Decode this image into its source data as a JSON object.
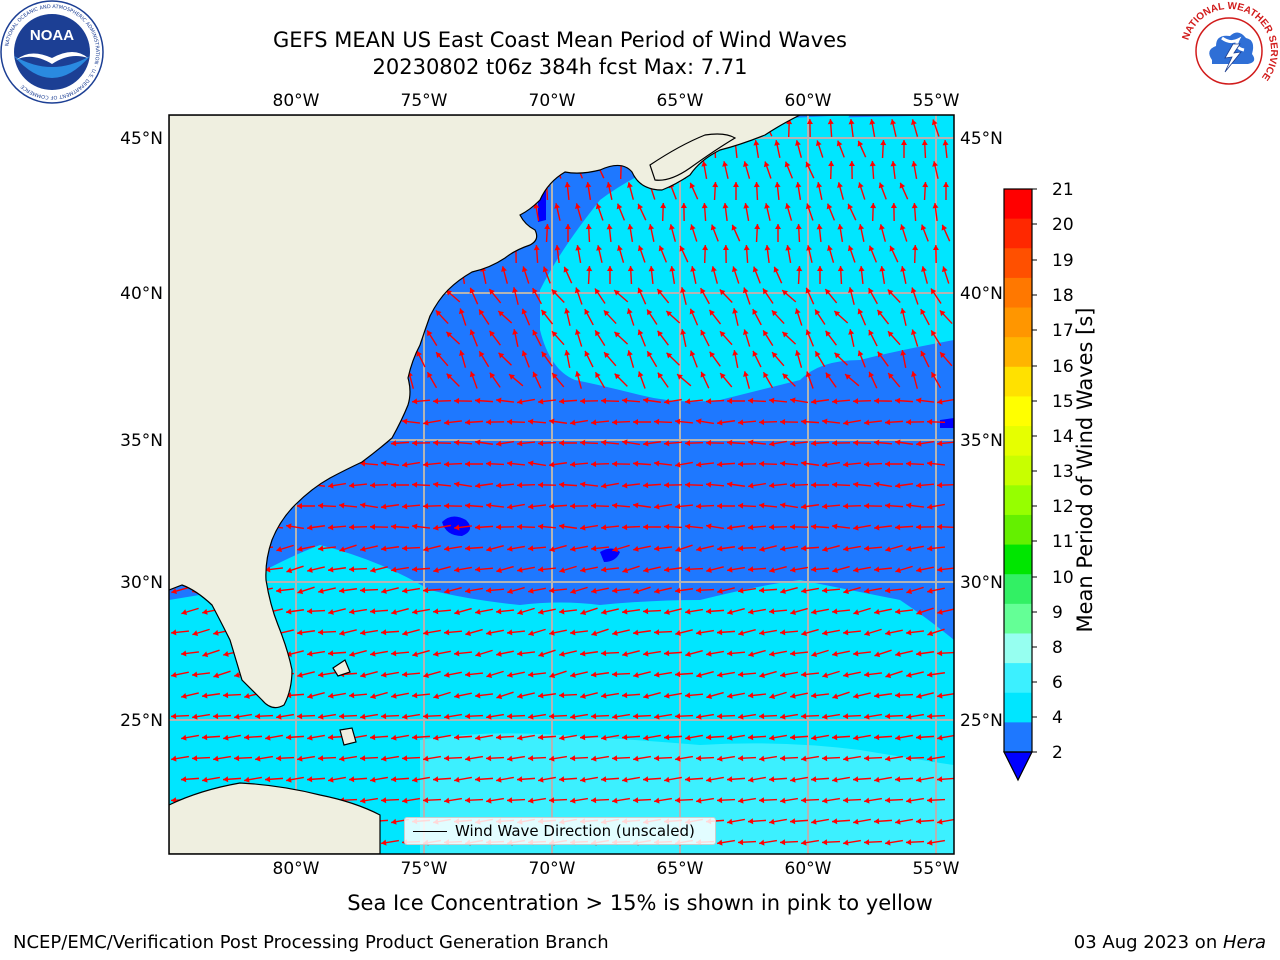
{
  "title": {
    "line1": "GEFS MEAN US East Coast Mean Period of Wind Waves",
    "line2": "20230802 t06z 384h fcst   Max: 7.71"
  },
  "map": {
    "lon_labels": [
      "80°W",
      "75°W",
      "70°W",
      "65°W",
      "60°W",
      "55°W"
    ],
    "lat_labels": [
      "45°N",
      "40°N",
      "35°N",
      "30°N",
      "25°N"
    ],
    "legend_label": "Wind Wave Direction (unscaled)",
    "colors": {
      "land": "#efefe0",
      "ocean_2_4": "#1e78ff",
      "ocean_4_6": "#00e6ff",
      "ocean_6_8": "#3cf0ff",
      "ocean_8_9": "#96fff0",
      "below_2": "#0000ff",
      "arrow": "#ff0000",
      "grid": "#b4b4b4"
    }
  },
  "colorbar": {
    "label": "Mean Period of Wind Waves [s]",
    "ticks": [
      "21",
      "20",
      "19",
      "18",
      "17",
      "16",
      "15",
      "14",
      "13",
      "12",
      "11",
      "10",
      "9",
      "8",
      "6",
      "4",
      "2"
    ],
    "colors_top_to_bottom": [
      "#ff0000",
      "#ff2800",
      "#ff5000",
      "#ff7800",
      "#ff9600",
      "#ffb400",
      "#ffe100",
      "#ffff00",
      "#e6ff00",
      "#c8ff00",
      "#96ff00",
      "#64f000",
      "#00e600",
      "#32f064",
      "#64ff96",
      "#96fff0",
      "#3cf0ff",
      "#00e6ff",
      "#1e78ff"
    ],
    "extend_color": "#0000ff"
  },
  "footer": {
    "ice_note": "Sea Ice Concentration > 15% is shown in pink to yellow",
    "credit": "NCEP/EMC/Verification Post Processing Product Generation Branch",
    "date_prefix": "03 Aug 2023 on ",
    "date_machine": "Hera"
  },
  "logos": {
    "noaa_text": "NOAA",
    "noaa_ring_text": "NATIONAL OCEANIC AND ATMOSPHERIC ADMINISTRATION · U.S. DEPARTMENT OF COMMERCE",
    "nws_ring_text": "NATIONAL WEATHER SERVICE"
  }
}
